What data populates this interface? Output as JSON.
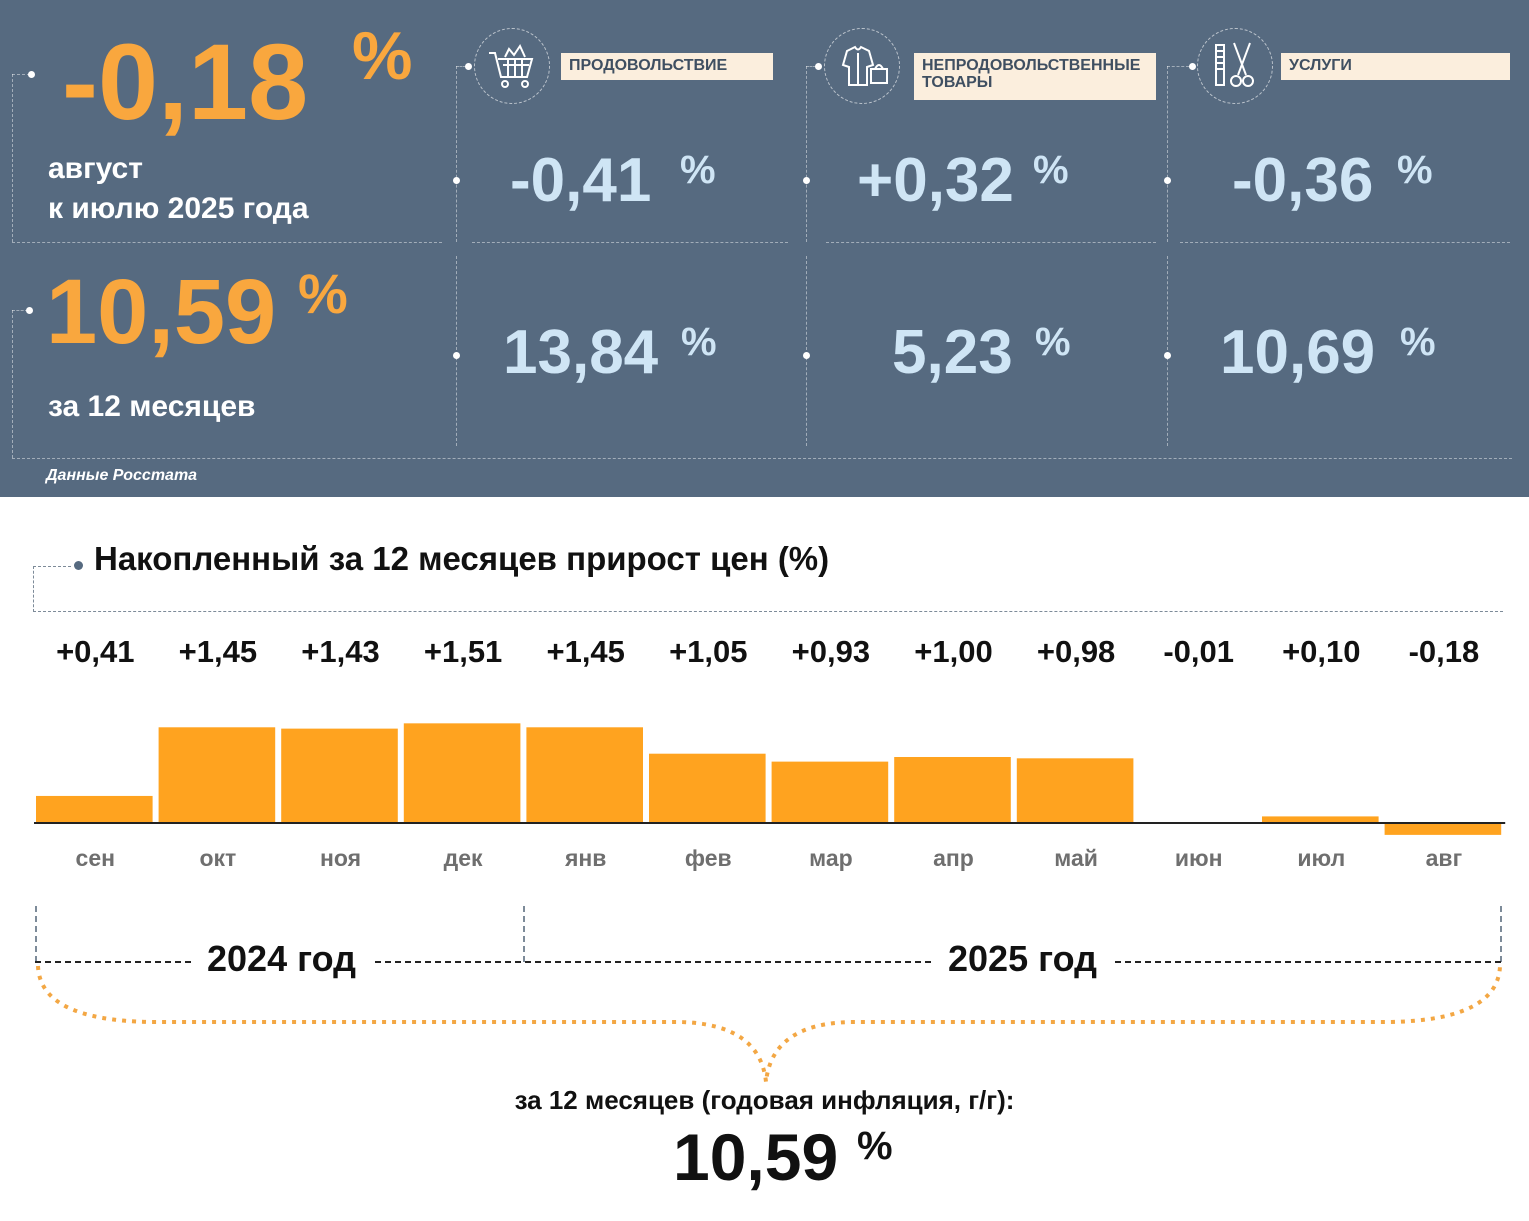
{
  "summary": {
    "monthly_value": "-0,18",
    "monthly_pct": "%",
    "monthly_caption_1": "август",
    "monthly_caption_2": "к июлю 2025 года",
    "annual_value": "10,59",
    "annual_pct": "%",
    "annual_caption": "за 12 месяцев",
    "source": "Данные Росстата"
  },
  "categories": [
    {
      "label": "ПРОДОВОЛЬСТВИЕ",
      "icon": "shopping-cart-icon",
      "monthly": "-0,41",
      "annual": "13,84",
      "pct": "%"
    },
    {
      "label": "НЕПРОДОВОЛЬСТВЕННЫЕ ТОВАРЫ",
      "icon": "clothes-bag-icon",
      "monthly": "+0,32",
      "annual": "5,23",
      "pct": "%"
    },
    {
      "label": "УСЛУГИ",
      "icon": "comb-scissors-icon",
      "monthly": "-0,36",
      "annual": "10,69",
      "pct": "%"
    }
  ],
  "colors": {
    "panel": "#566a80",
    "accent": "#f9a73e",
    "value_blue": "#cfe5f5",
    "bar": "#ffa31f"
  },
  "chart_data": {
    "type": "bar",
    "title": "Накопленный за 12 месяцев прирост цен (%)",
    "categories": [
      "сен",
      "окт",
      "ноя",
      "дек",
      "янв",
      "фев",
      "мар",
      "апр",
      "май",
      "июн",
      "июл",
      "авг"
    ],
    "values": [
      0.41,
      1.45,
      1.43,
      1.51,
      1.45,
      1.05,
      0.93,
      1.0,
      0.98,
      -0.01,
      0.1,
      -0.18
    ],
    "value_labels": [
      "+0,41",
      "+1,45",
      "+1,43",
      "+1,51",
      "+1,45",
      "+1,05",
      "+0,93",
      "+1,00",
      "+0,98",
      "-0,01",
      "+0,10",
      "-0,18"
    ],
    "year_groups": [
      {
        "label": "2024 год",
        "months": 4
      },
      {
        "label": "2025 год",
        "months": 8
      }
    ],
    "total_caption": "за 12 месяцев (годовая инфляция, г/г):",
    "total_value": "10,59",
    "total_pct": "%"
  }
}
